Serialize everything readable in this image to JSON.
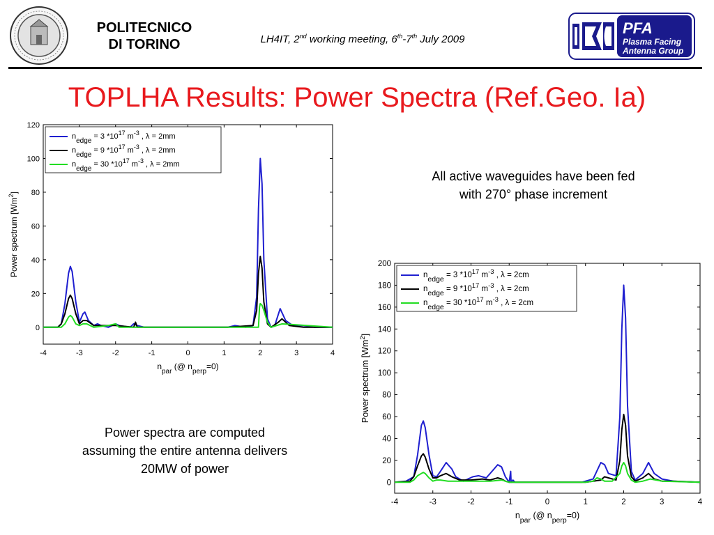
{
  "header": {
    "org_line1": "POLITECNICO",
    "org_line2": "DI TORINO",
    "meeting": {
      "pre": "LH4IT, 2",
      "sup1": "nd",
      "mid": " working meeting, 6",
      "sup2": "th",
      "mid2": "-7",
      "sup3": "th",
      "post": " July 2009"
    },
    "pfa": {
      "title": "PFA",
      "line1": "Plasma Facing",
      "line2": "Antenna Group"
    },
    "seal_icon": "university-seal-icon"
  },
  "slide_title": "TOPLHA Results: Power Spectra (Ref.Geo. Ia)",
  "notes": {
    "fed_line1": "All active waveguides have been fed",
    "fed_line2": "with 270° phase increment",
    "power_line1": "Power spectra are computed",
    "power_line2": "assuming the entire antenna delivers",
    "power_line3": "20MW of power"
  },
  "chart_data": [
    {
      "type": "line",
      "id": "left",
      "xlim": [
        -4,
        4
      ],
      "ylim": [
        -10,
        120
      ],
      "xticks": [
        -4,
        -3,
        -2,
        -1,
        0,
        1,
        2,
        3,
        4
      ],
      "yticks": [
        0,
        20,
        40,
        60,
        80,
        100,
        120
      ],
      "xlabel": {
        "main": "n",
        "sub": "par",
        "mid": "   (@ n",
        "sub2": "perp",
        "post": "=0)"
      },
      "ylabel": {
        "main": "Power spectrum [Wm",
        "sup": "2",
        "post": "]"
      },
      "legend_position": "top-left",
      "series": [
        {
          "name": {
            "a": "n",
            "sub": "edge",
            "b": " =  3 *10",
            "sup": "17",
            "c": " m",
            "sup2": "-3",
            "d": " , λ = 2mm"
          },
          "color": "#1f1fd0",
          "x": [
            -4,
            -3.6,
            -3.5,
            -3.4,
            -3.3,
            -3.25,
            -3.2,
            -3.1,
            -3.0,
            -2.9,
            -2.85,
            -2.75,
            -2.6,
            -2.5,
            -2.4,
            -2.2,
            -2.0,
            -1.9,
            -1.6,
            -1.5,
            -1.4,
            -1.2,
            1.1,
            1.3,
            1.6,
            1.8,
            1.9,
            1.95,
            2.0,
            2.05,
            2.1,
            2.2,
            2.3,
            2.4,
            2.55,
            2.7,
            2.9,
            3.2,
            3.5,
            4
          ],
          "y": [
            0,
            0,
            2,
            14,
            32,
            36,
            33,
            15,
            3,
            8,
            9,
            4,
            1,
            2,
            1,
            0,
            2,
            1,
            0,
            2,
            1,
            0,
            0,
            1,
            0,
            1,
            18,
            70,
            100,
            85,
            40,
            5,
            0,
            1,
            11,
            4,
            1,
            1,
            0,
            0
          ]
        },
        {
          "name": {
            "a": "n",
            "sub": "edge",
            "b": " =  9 *10",
            "sup": "17",
            "c": " m",
            "sup2": "-3",
            "d": " , λ = 2mm"
          },
          "color": "#000000",
          "x": [
            -4,
            -3.6,
            -3.5,
            -3.4,
            -3.3,
            -3.25,
            -3.2,
            -3.1,
            -3.0,
            -2.9,
            -2.8,
            -2.6,
            -2.4,
            -2.0,
            -1.5,
            -1.45,
            -1.4,
            1.1,
            1.8,
            1.9,
            1.95,
            2.0,
            2.05,
            2.1,
            2.2,
            2.3,
            2.5,
            2.6,
            2.8,
            3.2,
            4
          ],
          "y": [
            0,
            0,
            2,
            8,
            17,
            19,
            17,
            8,
            2,
            4,
            4,
            1,
            1,
            1,
            0,
            3,
            0,
            0,
            1,
            10,
            32,
            42,
            35,
            15,
            2,
            0,
            3,
            5,
            1,
            0,
            0
          ]
        },
        {
          "name": {
            "a": "n",
            "sub": "edge",
            "b": " = 30 *10",
            "sup": "17",
            "c": " m",
            "sup2": "-3",
            "d": " , λ = 2mm"
          },
          "color": "#22dd22",
          "x": [
            -4,
            -3.5,
            -3.4,
            -3.3,
            -3.25,
            -3.2,
            -3.1,
            -3.0,
            -2.9,
            -2.8,
            -2.6,
            -2.2,
            -2.0,
            -1.9,
            1.9,
            1.95,
            1.98,
            2.0,
            2.05,
            2.1,
            2.2,
            2.3,
            2.6,
            4
          ],
          "y": [
            0,
            0,
            2,
            6,
            7,
            6,
            2,
            1,
            2,
            2,
            0,
            1,
            2,
            0,
            0,
            0,
            12,
            14,
            13,
            10,
            3,
            0,
            2,
            0
          ]
        }
      ]
    },
    {
      "type": "line",
      "id": "right",
      "xlim": [
        -4,
        4
      ],
      "ylim": [
        -10,
        200
      ],
      "xticks": [
        -4,
        -3,
        -2,
        -1,
        0,
        1,
        2,
        3,
        4
      ],
      "yticks": [
        0,
        20,
        40,
        60,
        80,
        100,
        120,
        140,
        160,
        180,
        200
      ],
      "xlabel": {
        "main": "n",
        "sub": "par",
        "mid": "   (@ n",
        "sub2": "perp",
        "post": "=0)"
      },
      "ylabel": {
        "main": "Power spectrum [Wm",
        "sup": "2",
        "post": "]"
      },
      "legend_position": "top-left",
      "series": [
        {
          "name": {
            "a": "n",
            "sub": "edge",
            "b": " =  3 *10",
            "sup": "17",
            "c": " m",
            "sup2": "-3",
            "d": " , λ = 2cm"
          },
          "color": "#1f1fd0",
          "x": [
            -4,
            -3.7,
            -3.5,
            -3.4,
            -3.3,
            -3.25,
            -3.2,
            -3.1,
            -3.0,
            -2.9,
            -2.8,
            -2.65,
            -2.5,
            -2.4,
            -2.2,
            -1.95,
            -1.8,
            -1.6,
            -1.45,
            -1.3,
            -1.2,
            -1.1,
            -1.0,
            -0.96,
            -0.95,
            -0.9,
            -0.85,
            0.9,
            1.0,
            1.2,
            1.4,
            1.5,
            1.6,
            1.8,
            1.9,
            1.95,
            2.0,
            2.05,
            2.1,
            2.2,
            2.3,
            2.5,
            2.65,
            2.8,
            3.0,
            3.3,
            4
          ],
          "y": [
            0,
            1,
            5,
            25,
            52,
            56,
            50,
            25,
            6,
            5,
            10,
            18,
            12,
            5,
            1,
            5,
            6,
            4,
            10,
            16,
            14,
            5,
            0,
            10,
            0,
            2,
            0,
            0,
            1,
            3,
            18,
            16,
            8,
            6,
            60,
            140,
            180,
            150,
            70,
            10,
            2,
            8,
            18,
            8,
            3,
            1,
            0
          ]
        },
        {
          "name": {
            "a": "n",
            "sub": "edge",
            "b": " =  9 *10",
            "sup": "17",
            "c": " m",
            "sup2": "-3",
            "d": " , λ = 2cm"
          },
          "color": "#000000",
          "x": [
            -4,
            -3.6,
            -3.5,
            -3.4,
            -3.3,
            -3.25,
            -3.2,
            -3.1,
            -3.0,
            -2.9,
            -2.8,
            -2.65,
            -2.5,
            -2.3,
            -2.0,
            -1.7,
            -1.5,
            -1.3,
            -1.2,
            -1.1,
            -1.0,
            1.0,
            1.2,
            1.4,
            1.5,
            1.6,
            1.8,
            1.9,
            1.95,
            2.0,
            2.05,
            2.1,
            2.2,
            2.3,
            2.5,
            2.65,
            2.8,
            3.0,
            3.3,
            4
          ],
          "y": [
            0,
            1,
            5,
            15,
            24,
            26,
            23,
            12,
            4,
            4,
            6,
            8,
            5,
            2,
            2,
            3,
            2,
            4,
            3,
            1,
            0,
            0,
            1,
            2,
            5,
            4,
            2,
            20,
            48,
            62,
            52,
            24,
            5,
            1,
            4,
            8,
            3,
            1,
            1,
            0
          ]
        },
        {
          "name": {
            "a": "n",
            "sub": "edge",
            "b": " = 30 *10",
            "sup": "17",
            "c": " m",
            "sup2": "-3",
            "d": " , λ = 2cm"
          },
          "color": "#22dd22",
          "x": [
            -4,
            -3.6,
            -3.5,
            -3.4,
            -3.3,
            -3.25,
            -3.2,
            -3.1,
            -3.0,
            -2.9,
            -2.8,
            -2.6,
            -2.4,
            -2.0,
            -1.5,
            -1.2,
            -1.0,
            1.0,
            1.2,
            1.3,
            1.4,
            1.5,
            1.7,
            1.9,
            1.95,
            2.0,
            2.05,
            2.1,
            2.2,
            2.3,
            2.5,
            2.7,
            3.0,
            4
          ],
          "y": [
            0,
            0,
            2,
            6,
            8,
            9,
            8,
            4,
            1,
            2,
            2,
            1,
            1,
            1,
            1,
            2,
            0,
            0,
            1,
            4,
            3,
            1,
            1,
            8,
            15,
            18,
            15,
            8,
            2,
            0,
            1,
            3,
            1,
            0
          ]
        }
      ]
    }
  ]
}
